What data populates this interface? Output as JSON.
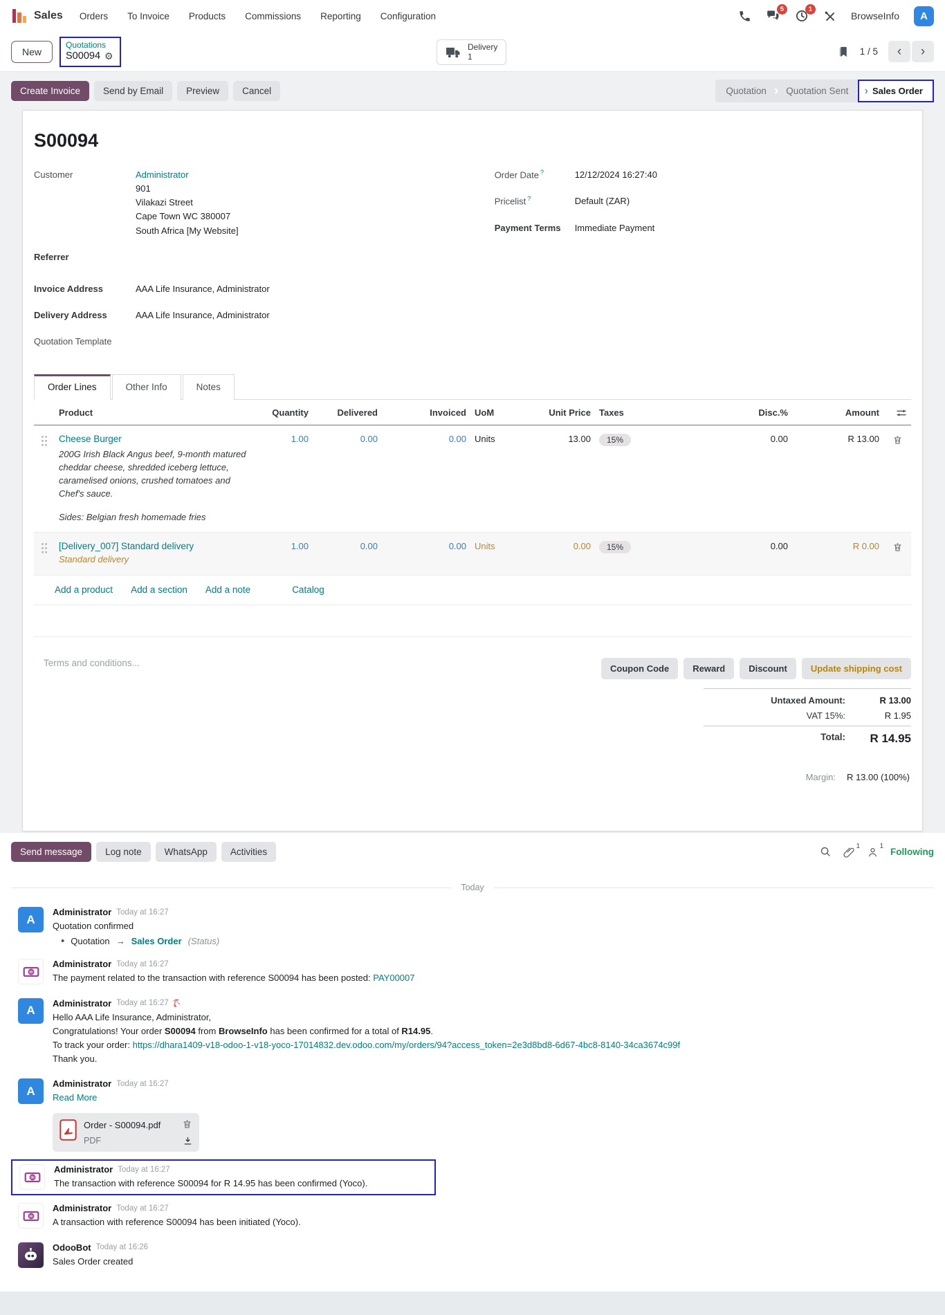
{
  "navbar": {
    "app_name": "Sales",
    "menus": [
      "Orders",
      "To Invoice",
      "Products",
      "Commissions",
      "Reporting",
      "Configuration"
    ],
    "messages_badge": "5",
    "activities_badge": "1",
    "company": "BrowseInfo",
    "avatar_letter": "A"
  },
  "control_panel": {
    "new_label": "New",
    "breadcrumb_parent": "Quotations",
    "breadcrumb_current": "S00094",
    "gear_icon_glyph": "⚙",
    "stat_button": {
      "label": "Delivery",
      "count": "1"
    },
    "pager_value": "1 / 5",
    "prev_glyph": "‹",
    "next_glyph": "›"
  },
  "status_bar": {
    "buttons": [
      "Create Invoice",
      "Send by Email",
      "Preview",
      "Cancel"
    ],
    "steps": [
      {
        "label": "Quotation",
        "active": false
      },
      {
        "label": "Quotation Sent",
        "active": false
      },
      {
        "label": "Sales Order",
        "active": true
      }
    ]
  },
  "order": {
    "name": "S00094",
    "customer_label": "Customer",
    "customer": "Administrator",
    "customer_address_lines": [
      "901",
      "Vilakazi Street",
      "Cape Town WC 380007",
      "South Africa [My Website]"
    ],
    "referrer_label": "Referrer",
    "invoice_address_label": "Invoice Address",
    "invoice_address": "AAA Life Insurance, Administrator",
    "delivery_address_label": "Delivery Address",
    "delivery_address": "AAA Life Insurance, Administrator",
    "quotation_template_label": "Quotation Template",
    "order_date_label": "Order Date",
    "order_date_help": "?",
    "order_date": "12/12/2024 16:27:40",
    "pricelist_label": "Pricelist",
    "pricelist_help": "?",
    "pricelist": "Default (ZAR)",
    "payment_terms_label": "Payment Terms",
    "payment_terms": "Immediate Payment"
  },
  "tabs": [
    {
      "label": "Order Lines",
      "active": true
    },
    {
      "label": "Other Info",
      "active": false
    },
    {
      "label": "Notes",
      "active": false
    }
  ],
  "order_lines": {
    "headers": [
      "Product",
      "Quantity",
      "Delivered",
      "Invoiced",
      "UoM",
      "Unit Price",
      "Taxes",
      "Disc.%",
      "Amount"
    ],
    "rows": [
      {
        "product": "Cheese Burger",
        "description_lines": [
          "200G Irish Black Angus beef, 9-month matured cheddar cheese, shredded iceberg lettuce, caramelised onions, crushed tomatoes and Chef's sauce.",
          "",
          "Sides: Belgian fresh homemade fries"
        ],
        "quantity": "1.00",
        "delivered": "0.00",
        "invoiced": "0.00",
        "uom": "Units",
        "unit_price": "13.00",
        "taxes": "15%",
        "disc": "0.00",
        "amount": "R 13.00",
        "muted_gold": false
      },
      {
        "product": "[Delivery_007] Standard delivery",
        "description_lines": [
          "Standard delivery"
        ],
        "quantity": "1.00",
        "delivered": "0.00",
        "invoiced": "0.00",
        "uom": "Units",
        "unit_price": "0.00",
        "taxes": "15%",
        "disc": "0.00",
        "amount": "R 0.00",
        "muted_gold": true
      }
    ],
    "footer_links": [
      "Add a product",
      "Add a section",
      "Add a note",
      "Catalog"
    ]
  },
  "totals": {
    "terms_placeholder": "Terms and conditions...",
    "buttons": [
      {
        "label": "Coupon Code",
        "gold": false
      },
      {
        "label": "Reward",
        "gold": false
      },
      {
        "label": "Discount",
        "gold": false
      },
      {
        "label": "Update shipping cost",
        "gold": true
      }
    ],
    "untaxed_label": "Untaxed Amount:",
    "untaxed": "R 13.00",
    "vat_label": "VAT 15%:",
    "vat": "R 1.95",
    "total_label": "Total:",
    "total": "R 14.95",
    "margin_label": "Margin:",
    "margin": "R 13.00 (100%)"
  },
  "chatter": {
    "buttons": [
      {
        "label": "Send message",
        "primary": true
      },
      {
        "label": "Log note",
        "primary": false
      },
      {
        "label": "WhatsApp",
        "primary": false
      },
      {
        "label": "Activities",
        "primary": false
      }
    ],
    "attachment_count": "1",
    "follower_count": "1",
    "following_label": "Following",
    "divider": "Today",
    "messages": [
      {
        "author": "Administrator",
        "time": "Today at 16:27",
        "avatar": "admin",
        "lines": [
          [
            {
              "t": "text",
              "v": "Quotation confirmed"
            }
          ]
        ],
        "tracking": {
          "old": "Quotation",
          "arrow": "→",
          "new": "Sales Order",
          "suffix": "(Status)"
        }
      },
      {
        "author": "Administrator",
        "time": "Today at 16:27",
        "avatar": "money",
        "lines": [
          [
            {
              "t": "text",
              "v": "The payment related to the transaction with reference S00094 has been posted: "
            },
            {
              "t": "link",
              "v": "PAY00007"
            }
          ]
        ]
      },
      {
        "author": "Administrator",
        "time": "Today at 16:27",
        "avatar": "admin",
        "whatsapp": true,
        "lines": [
          [
            {
              "t": "text",
              "v": "Hello AAA Life Insurance, Administrator,"
            }
          ],
          [
            {
              "t": "text",
              "v": "Congratulations! Your order "
            },
            {
              "t": "bold",
              "v": "S00094"
            },
            {
              "t": "text",
              "v": " from "
            },
            {
              "t": "bold",
              "v": "BrowseInfo"
            },
            {
              "t": "text",
              "v": " has been confirmed for a total of "
            },
            {
              "t": "bold",
              "v": "R14.95"
            },
            {
              "t": "text",
              "v": "."
            }
          ],
          [
            {
              "t": "text",
              "v": "To track your order: "
            },
            {
              "t": "link",
              "v": "https://dhara1409-v18-odoo-1-v18-yoco-17014832.dev.odoo.com/my/orders/94?access_token=2e3d8bd8-6d67-4bc8-8140-34ca3674c99f"
            }
          ],
          [
            {
              "t": "text",
              "v": "Thank you."
            }
          ]
        ]
      },
      {
        "author": "Administrator",
        "time": "Today at 16:27",
        "avatar": "admin",
        "lines": [
          [
            {
              "t": "link",
              "v": "Read More"
            }
          ]
        ],
        "attachment": {
          "name": "Order - S00094.pdf",
          "type": "PDF"
        }
      },
      {
        "author": "Administrator",
        "time": "Today at 16:27",
        "avatar": "money",
        "highlighted": true,
        "lines": [
          [
            {
              "t": "text",
              "v": "The transaction with reference S00094 for R 14.95 has been confirmed (Yoco)."
            }
          ]
        ]
      },
      {
        "author": "Administrator",
        "time": "Today at 16:27",
        "avatar": "money",
        "lines": [
          [
            {
              "t": "text",
              "v": "A transaction with reference S00094 has been initiated (Yoco)."
            }
          ]
        ]
      },
      {
        "author": "OdooBot",
        "time": "Today at 16:26",
        "avatar": "bot",
        "lines": [
          [
            {
              "t": "text",
              "v": "Sales Order created"
            }
          ]
        ]
      }
    ]
  }
}
